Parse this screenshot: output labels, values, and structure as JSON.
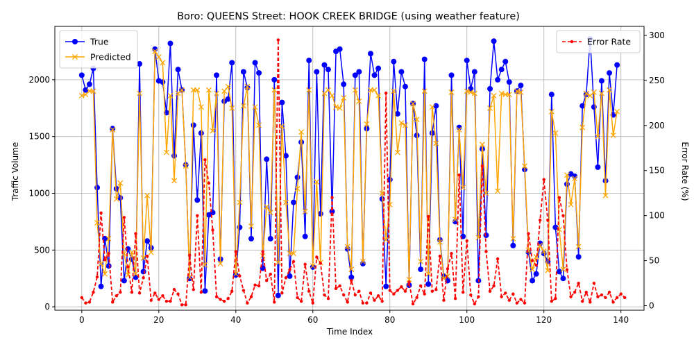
{
  "chart_data": {
    "type": "line",
    "title": "Boro: QUEENS Street: HOOK CREEK BRIDGE (using weather feature)",
    "xlabel": "Time Index",
    "ylabel_left": "Traffic Volume",
    "ylabel_right": "Error Rate (%)",
    "xlim": [
      -7,
      146
    ],
    "ylim_left": [
      -30,
      2470
    ],
    "ylim_right": [
      -5,
      310
    ],
    "x_ticks": [
      0,
      20,
      40,
      60,
      80,
      100,
      120,
      140
    ],
    "y_ticks_left": [
      0,
      500,
      1000,
      1500,
      2000
    ],
    "y_ticks_right": [
      0,
      50,
      100,
      150,
      200,
      250,
      300
    ],
    "grid": true,
    "legend_left_position": "upper left",
    "legend_right_position": "upper right",
    "series": [
      {
        "name": "True",
        "axis": "left",
        "color": "#0000ff",
        "marker": "circle",
        "values": [
          2040,
          1910,
          1960,
          2100,
          1050,
          180,
          600,
          360,
          1570,
          1040,
          960,
          230,
          510,
          420,
          260,
          2140,
          310,
          580,
          520,
          2270,
          1990,
          1980,
          1710,
          2320,
          1330,
          2090,
          1910,
          1250,
          250,
          1600,
          940,
          1530,
          140,
          810,
          830,
          2040,
          420,
          1810,
          1830,
          2150,
          280,
          700,
          2070,
          1930,
          600,
          2150,
          2060,
          340,
          1300,
          600,
          2000,
          100,
          1800,
          1330,
          270,
          920,
          1140,
          1450,
          620,
          2170,
          350,
          2070,
          820,
          2130,
          2090,
          840,
          2250,
          2270,
          1960,
          510,
          260,
          2040,
          2070,
          380,
          1570,
          2230,
          2040,
          2100,
          950,
          180,
          1120,
          2160,
          1700,
          2070,
          1940,
          190,
          1790,
          1510,
          330,
          2180,
          200,
          1530,
          1770,
          590,
          270,
          230,
          2040,
          750,
          1580,
          620,
          2170,
          1920,
          2070,
          230,
          1390,
          630,
          1920,
          2340,
          2000,
          2090,
          2160,
          1980,
          540,
          1900,
          1950,
          1210,
          480,
          230,
          290,
          560,
          470,
          400,
          1870,
          700,
          310,
          250,
          1080,
          1170,
          1150,
          440,
          1770,
          1870,
          2360,
          1760,
          1230,
          1990,
          1110,
          2060,
          1690,
          2130
        ]
      },
      {
        "name": "Predicted",
        "axis": "left",
        "color": "#ffa500",
        "marker": "x",
        "values": [
          1860,
          1870,
          1900,
          1900,
          740,
          380,
          290,
          600,
          1560,
          950,
          1090,
          470,
          280,
          480,
          290,
          1880,
          430,
          980,
          480,
          2250,
          2200,
          2150,
          1360,
          1860,
          1110,
          1880,
          1910,
          1240,
          260,
          1910,
          1910,
          1760,
          370,
          1910,
          1550,
          1880,
          380,
          1900,
          1940,
          1750,
          290,
          920,
          1770,
          1940,
          710,
          1760,
          1600,
          450,
          880,
          830,
          1910,
          390,
          1590,
          920,
          470,
          470,
          1040,
          1540,
          840,
          1910,
          360,
          1100,
          390,
          1880,
          1910,
          1860,
          1760,
          1750,
          1840,
          530,
          330,
          1910,
          1810,
          400,
          1610,
          1910,
          1910,
          1860,
          1000,
          590,
          900,
          1900,
          1360,
          1620,
          1600,
          240,
          1790,
          1650,
          400,
          1900,
          290,
          1760,
          1440,
          570,
          250,
          270,
          1890,
          770,
          1560,
          1050,
          1900,
          1890,
          1880,
          610,
          1430,
          1000,
          1750,
          1860,
          1020,
          1880,
          1870,
          1870,
          600,
          1900,
          1890,
          1240,
          500,
          330,
          440,
          540,
          490,
          320,
          1720,
          1530,
          680,
          330,
          1160,
          900,
          1130,
          530,
          1580,
          1880,
          1860,
          1890,
          1500,
          1880,
          980,
          1910,
          1510,
          1720
        ]
      },
      {
        "name": "Error Rate",
        "axis": "right",
        "color": "#ff0000",
        "marker": "dot",
        "line_style": "dashed",
        "values": [
          9,
          3,
          4,
          15,
          32,
          103,
          51,
          58,
          4,
          11,
          15,
          98,
          43,
          15,
          80,
          14,
          31,
          55,
          6,
          14,
          7,
          11,
          5,
          5,
          18,
          13,
          1,
          1,
          56,
          18,
          100,
          15,
          162,
          136,
          84,
          10,
          7,
          5,
          8,
          16,
          60,
          33,
          17,
          3,
          10,
          23,
          22,
          60,
          28,
          35,
          4,
          295,
          14,
          31,
          40,
          49,
          9,
          5,
          46,
          16,
          3,
          54,
          47,
          12,
          8,
          120,
          19,
          22,
          12,
          4,
          28,
          12,
          16,
          3,
          3,
          14,
          6,
          11,
          5,
          236,
          17,
          13,
          17,
          21,
          16,
          26,
          2,
          9,
          22,
          13,
          99,
          16,
          18,
          55,
          6,
          41,
          58,
          8,
          145,
          15,
          72,
          12,
          2,
          10,
          155,
          60,
          16,
          22,
          52,
          10,
          14,
          6,
          13,
          3,
          7,
          3,
          80,
          50,
          45,
          95,
          140,
          95,
          5,
          8,
          120,
          100,
          40,
          10,
          15,
          25,
          5,
          15,
          4,
          25,
          10,
          12,
          9,
          15,
          4,
          9,
          13,
          9
        ]
      }
    ]
  }
}
